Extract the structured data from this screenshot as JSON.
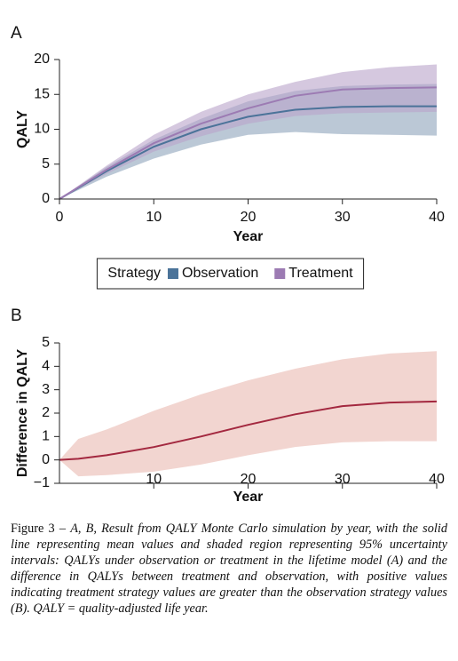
{
  "chart_data": [
    {
      "type": "line",
      "panel": "A",
      "xlabel": "Year",
      "ylabel": "QALY",
      "x": [
        0,
        5,
        10,
        15,
        20,
        25,
        30,
        35,
        40
      ],
      "xlim": [
        0,
        40
      ],
      "xticks": [
        0,
        10,
        20,
        30,
        40
      ],
      "ylim": [
        0,
        20
      ],
      "yticks": [
        0,
        5,
        10,
        15,
        20
      ],
      "legend": {
        "title": "Strategy",
        "position": "bottom"
      },
      "series": [
        {
          "name": "Observation",
          "color": "#4b7399",
          "band_color": "#8ea3bb",
          "values": [
            0,
            4.0,
            7.5,
            10.0,
            11.8,
            12.8,
            13.2,
            13.3,
            13.3
          ],
          "lower": [
            0,
            3.2,
            5.8,
            7.8,
            9.2,
            9.6,
            9.3,
            9.2,
            9.1
          ],
          "upper": [
            0,
            4.6,
            8.5,
            11.5,
            14.0,
            15.5,
            16.2,
            16.4,
            16.5
          ]
        },
        {
          "name": "Treatment",
          "color": "#9c7bb3",
          "band_color": "#b9a3c9",
          "values": [
            0,
            4.2,
            8.0,
            10.8,
            13.0,
            14.8,
            15.7,
            15.9,
            16.0
          ],
          "lower": [
            0,
            3.6,
            6.8,
            9.0,
            10.8,
            11.9,
            12.3,
            12.4,
            12.5
          ],
          "upper": [
            0,
            4.8,
            9.2,
            12.5,
            15.0,
            16.8,
            18.2,
            18.9,
            19.3
          ]
        }
      ]
    },
    {
      "type": "line",
      "panel": "B",
      "xlabel": "Year",
      "ylabel": "Difference in QALY",
      "x": [
        0,
        2,
        5,
        10,
        15,
        20,
        25,
        30,
        35,
        40
      ],
      "xlim": [
        0,
        40
      ],
      "xticks": [
        10,
        20,
        30,
        40
      ],
      "ylim": [
        -1,
        5
      ],
      "yticks": [
        {
          "value": -1,
          "label": "−1"
        },
        0,
        1,
        2,
        3,
        4,
        5
      ],
      "series": [
        {
          "color": "#a3283f",
          "band_color": "#f2d5d0",
          "values": [
            0,
            0.05,
            0.2,
            0.55,
            1.0,
            1.5,
            1.95,
            2.3,
            2.45,
            2.5
          ],
          "lower": [
            0,
            -0.7,
            -0.65,
            -0.5,
            -0.2,
            0.2,
            0.55,
            0.75,
            0.8,
            0.8
          ],
          "upper": [
            0,
            0.9,
            1.3,
            2.1,
            2.8,
            3.4,
            3.9,
            4.3,
            4.55,
            4.65
          ]
        }
      ]
    }
  ],
  "caption": {
    "label": "Figure 3 –",
    "text": "A, B, Result from QALY Monte Carlo simulation by year, with the solid line representing mean values and shaded region representing 95% uncertainty intervals: QALYs under observation or treatment in the lifetime model (A) and the difference in QALYs between treatment and observation, with positive values indicating treatment strategy values are greater than the observation strategy values (B). QALY = quality-adjusted life year."
  }
}
